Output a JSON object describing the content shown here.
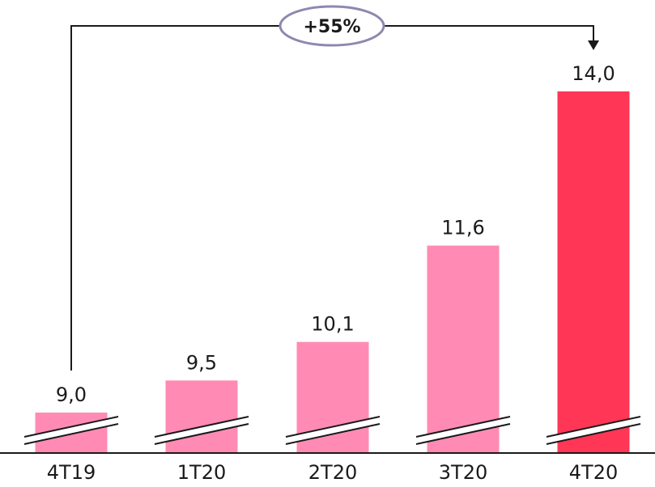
{
  "chart_data": {
    "type": "bar",
    "categories": [
      "4T19",
      "1T20",
      "2T20",
      "3T20",
      "4T20"
    ],
    "values": [
      9.0,
      9.5,
      10.1,
      11.6,
      14.0
    ],
    "value_labels": [
      "9,0",
      "9,5",
      "10,1",
      "11,6",
      "14,0"
    ],
    "broken_axis": true,
    "colors": {
      "bar": "#ff8bb5",
      "highlight_bar": "#ff3656",
      "baseline": "#1a1a1a",
      "badge_border": "#8f87b0"
    },
    "highlight_index": 4,
    "annotation": {
      "text": "+55%",
      "from_category": "4T19",
      "to_category": "4T20"
    },
    "title": "",
    "xlabel": "",
    "ylabel": ""
  }
}
